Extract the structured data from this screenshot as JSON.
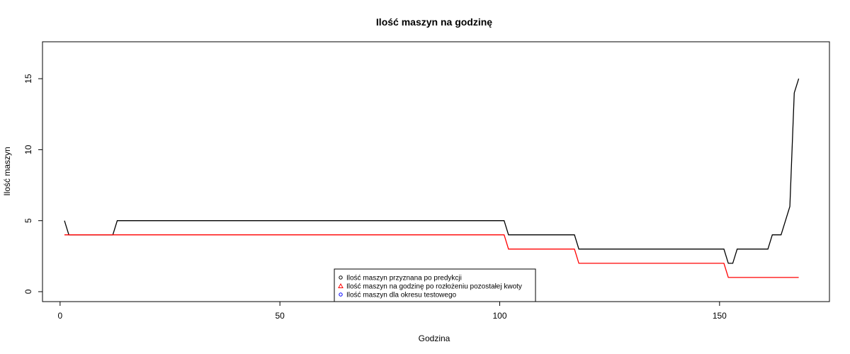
{
  "chart_data": {
    "type": "line",
    "title": "Ilość maszyn na godzinę",
    "xlabel": "Godzina",
    "ylabel": "Ilość maszyn",
    "xlim": [
      -4,
      175
    ],
    "ylim": [
      -0.7,
      17.6
    ],
    "xticks": [
      0,
      50,
      100,
      150
    ],
    "yticks": [
      0,
      5,
      10,
      15
    ],
    "grid": false,
    "legend_position": "bottom-center",
    "series": [
      {
        "name": "Ilość maszyn przyznana po predykcji",
        "color": "#000000",
        "marker": "circle",
        "points": [
          [
            1,
            5
          ],
          [
            2,
            4
          ],
          [
            12,
            4
          ],
          [
            13,
            5
          ],
          [
            101,
            5
          ],
          [
            102,
            4
          ],
          [
            117,
            4
          ],
          [
            118,
            3
          ],
          [
            151,
            3
          ],
          [
            152,
            2
          ],
          [
            153,
            2
          ],
          [
            154,
            3
          ],
          [
            161,
            3
          ],
          [
            162,
            4
          ],
          [
            164,
            4
          ],
          [
            165,
            5
          ],
          [
            166,
            6
          ],
          [
            167,
            14
          ],
          [
            168,
            15
          ]
        ]
      },
      {
        "name": "Ilość maszyn na godzinę po rozłożeniu pozostałej kwoty",
        "color": "#ff0000",
        "marker": "triangle",
        "points": [
          [
            1,
            4
          ],
          [
            101,
            4
          ],
          [
            102,
            3
          ],
          [
            117,
            3
          ],
          [
            118,
            2
          ],
          [
            151,
            2
          ],
          [
            152,
            1
          ],
          [
            168,
            1
          ]
        ]
      },
      {
        "name": "Ilość maszyn dla okresu testowego",
        "color": "#0000ff",
        "marker": "circle",
        "points": []
      }
    ]
  }
}
